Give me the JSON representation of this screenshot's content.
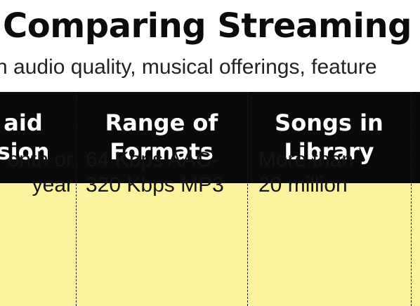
{
  "title": "Comparing Streaming",
  "subtitle": "n audio quality, musical offerings, feature",
  "table": {
    "headers": [
      {
        "line1": "aid",
        "line2": "sion"
      },
      {
        "line1": "Range of",
        "line2": "Formats"
      },
      {
        "line1": "Songs in",
        "line2": "Library"
      }
    ],
    "row": [
      {
        "line1": "onth or",
        "line2": "year"
      },
      {
        "line1": "64 Kbps AAC-",
        "line2": "320 Kbps MP3"
      },
      {
        "line1": "More than",
        "line2": "20 million"
      }
    ]
  },
  "colors": {
    "header_bg": "#0a0a0a",
    "row_bg": "#fbf39e",
    "header_text": "#ffffff"
  }
}
